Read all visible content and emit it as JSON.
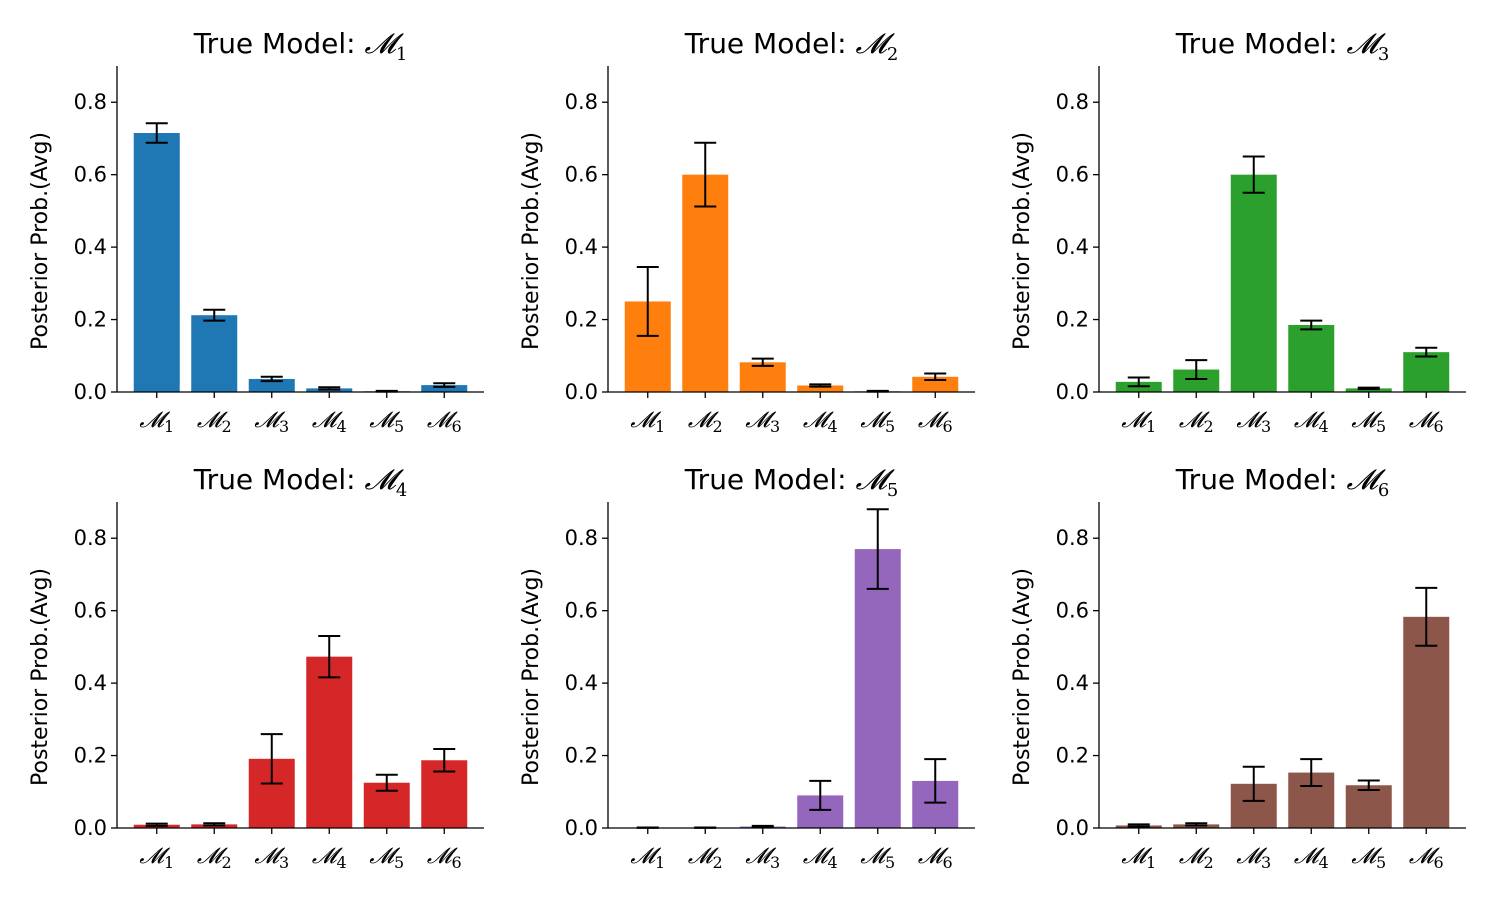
{
  "chart_data": [
    {
      "type": "bar",
      "title": "True Model: ",
      "title_symbol": "𝓜",
      "title_index": "1",
      "ylabel": "Posterior Prob.(Avg)",
      "ylim": [
        0,
        0.9
      ],
      "yticks": [
        "0.0",
        "0.2",
        "0.4",
        "0.6",
        "0.8"
      ],
      "categories": [
        {
          "symbol": "𝓜",
          "index": "1"
        },
        {
          "symbol": "𝓜",
          "index": "2"
        },
        {
          "symbol": "𝓜",
          "index": "3"
        },
        {
          "symbol": "𝓜",
          "index": "4"
        },
        {
          "symbol": "𝓜",
          "index": "5"
        },
        {
          "symbol": "𝓜",
          "index": "6"
        }
      ],
      "values": [
        0.715,
        0.212,
        0.036,
        0.01,
        0.002,
        0.019
      ],
      "errors": [
        0.027,
        0.015,
        0.006,
        0.003,
        0.001,
        0.005
      ],
      "color": "#1f77b4"
    },
    {
      "type": "bar",
      "title": "True Model: ",
      "title_symbol": "𝓜",
      "title_index": "2",
      "ylabel": "Posterior Prob.(Avg)",
      "ylim": [
        0,
        0.9
      ],
      "yticks": [
        "0.0",
        "0.2",
        "0.4",
        "0.6",
        "0.8"
      ],
      "categories": [
        {
          "symbol": "𝓜",
          "index": "1"
        },
        {
          "symbol": "𝓜",
          "index": "2"
        },
        {
          "symbol": "𝓜",
          "index": "3"
        },
        {
          "symbol": "𝓜",
          "index": "4"
        },
        {
          "symbol": "𝓜",
          "index": "5"
        },
        {
          "symbol": "𝓜",
          "index": "6"
        }
      ],
      "values": [
        0.25,
        0.6,
        0.082,
        0.018,
        0.002,
        0.042
      ],
      "errors": [
        0.095,
        0.088,
        0.01,
        0.003,
        0.001,
        0.009
      ],
      "color": "#ff7f0e"
    },
    {
      "type": "bar",
      "title": "True Model: ",
      "title_symbol": "𝓜",
      "title_index": "3",
      "ylabel": "Posterior Prob.(Avg)",
      "ylim": [
        0,
        0.9
      ],
      "yticks": [
        "0.0",
        "0.2",
        "0.4",
        "0.6",
        "0.8"
      ],
      "categories": [
        {
          "symbol": "𝓜",
          "index": "1"
        },
        {
          "symbol": "𝓜",
          "index": "2"
        },
        {
          "symbol": "𝓜",
          "index": "3"
        },
        {
          "symbol": "𝓜",
          "index": "4"
        },
        {
          "symbol": "𝓜",
          "index": "5"
        },
        {
          "symbol": "𝓜",
          "index": "6"
        }
      ],
      "values": [
        0.028,
        0.062,
        0.6,
        0.185,
        0.01,
        0.11
      ],
      "errors": [
        0.012,
        0.026,
        0.05,
        0.012,
        0.002,
        0.012
      ],
      "color": "#2ca02c"
    },
    {
      "type": "bar",
      "title": "True Model: ",
      "title_symbol": "𝓜",
      "title_index": "4",
      "ylabel": "Posterior Prob.(Avg)",
      "ylim": [
        0,
        0.9
      ],
      "yticks": [
        "0.0",
        "0.2",
        "0.4",
        "0.6",
        "0.8"
      ],
      "categories": [
        {
          "symbol": "𝓜",
          "index": "1"
        },
        {
          "symbol": "𝓜",
          "index": "2"
        },
        {
          "symbol": "𝓜",
          "index": "3"
        },
        {
          "symbol": "𝓜",
          "index": "4"
        },
        {
          "symbol": "𝓜",
          "index": "5"
        },
        {
          "symbol": "𝓜",
          "index": "6"
        }
      ],
      "values": [
        0.009,
        0.01,
        0.191,
        0.473,
        0.125,
        0.187
      ],
      "errors": [
        0.003,
        0.003,
        0.068,
        0.057,
        0.022,
        0.031
      ],
      "color": "#d62728"
    },
    {
      "type": "bar",
      "title": "True Model: ",
      "title_symbol": "𝓜",
      "title_index": "5",
      "ylabel": "Posterior Prob.(Avg)",
      "ylim": [
        0,
        0.9
      ],
      "yticks": [
        "0.0",
        "0.2",
        "0.4",
        "0.6",
        "0.8"
      ],
      "categories": [
        {
          "symbol": "𝓜",
          "index": "1"
        },
        {
          "symbol": "𝓜",
          "index": "2"
        },
        {
          "symbol": "𝓜",
          "index": "3"
        },
        {
          "symbol": "𝓜",
          "index": "4"
        },
        {
          "symbol": "𝓜",
          "index": "5"
        },
        {
          "symbol": "𝓜",
          "index": "6"
        }
      ],
      "values": [
        0.001,
        0.001,
        0.004,
        0.09,
        0.77,
        0.13
      ],
      "errors": [
        0.0005,
        0.0005,
        0.002,
        0.04,
        0.11,
        0.06
      ],
      "color": "#9467bd"
    },
    {
      "type": "bar",
      "title": "True Model: ",
      "title_symbol": "𝓜",
      "title_index": "6",
      "ylabel": "Posterior Prob.(Avg)",
      "ylim": [
        0,
        0.9
      ],
      "yticks": [
        "0.0",
        "0.2",
        "0.4",
        "0.6",
        "0.8"
      ],
      "categories": [
        {
          "symbol": "𝓜",
          "index": "1"
        },
        {
          "symbol": "𝓜",
          "index": "2"
        },
        {
          "symbol": "𝓜",
          "index": "3"
        },
        {
          "symbol": "𝓜",
          "index": "4"
        },
        {
          "symbol": "𝓜",
          "index": "5"
        },
        {
          "symbol": "𝓜",
          "index": "6"
        }
      ],
      "values": [
        0.007,
        0.01,
        0.122,
        0.153,
        0.118,
        0.583
      ],
      "errors": [
        0.003,
        0.003,
        0.047,
        0.037,
        0.013,
        0.08
      ],
      "color": "#8c564b"
    }
  ]
}
